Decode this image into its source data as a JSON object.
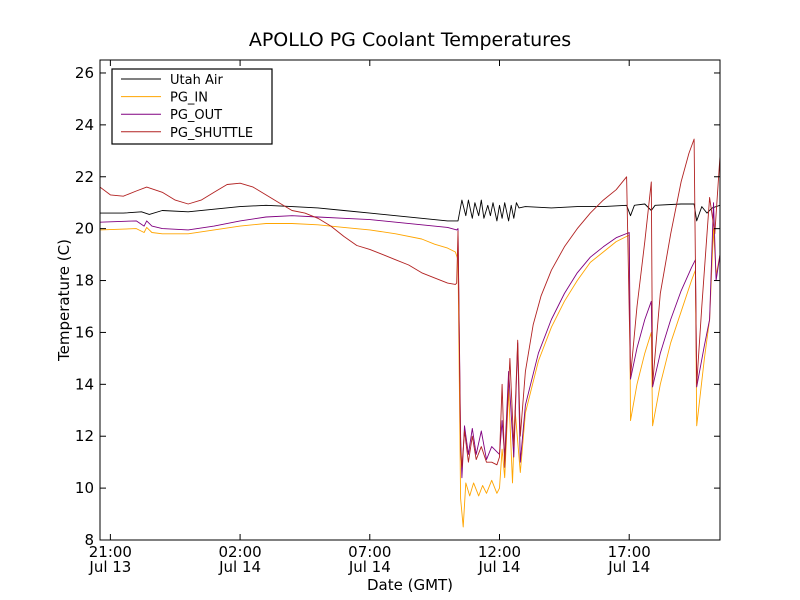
{
  "chart_data": {
    "type": "line",
    "title": "APOLLO PG Coolant Temperatures",
    "xlabel": "Date (GMT)",
    "ylabel": "Temperature (C)",
    "x_unit": "hours since Jul 13 20:00 GMT",
    "xlim": [
      0.6,
      24.5
    ],
    "ylim": [
      8,
      26.5
    ],
    "y_ticks": [
      8,
      10,
      12,
      14,
      16,
      18,
      20,
      22,
      24,
      26
    ],
    "x_ticks": [
      {
        "x": 1,
        "time": "21:00",
        "date": "Jul 13"
      },
      {
        "x": 6,
        "time": "02:00",
        "date": "Jul 14"
      },
      {
        "x": 11,
        "time": "07:00",
        "date": "Jul 14"
      },
      {
        "x": 16,
        "time": "12:00",
        "date": "Jul 14"
      },
      {
        "x": 21,
        "time": "17:00",
        "date": "Jul 14"
      }
    ],
    "legend_position": "top-left",
    "series": [
      {
        "name": "Utah Air",
        "color": "#000000",
        "points": [
          [
            0.6,
            20.6
          ],
          [
            1.5,
            20.6
          ],
          [
            2.2,
            20.65
          ],
          [
            2.5,
            20.55
          ],
          [
            3.0,
            20.7
          ],
          [
            4.0,
            20.65
          ],
          [
            5.0,
            20.75
          ],
          [
            6.0,
            20.85
          ],
          [
            7.0,
            20.9
          ],
          [
            8.0,
            20.85
          ],
          [
            9.0,
            20.8
          ],
          [
            10.0,
            20.7
          ],
          [
            11.0,
            20.6
          ],
          [
            12.0,
            20.5
          ],
          [
            13.0,
            20.4
          ],
          [
            14.0,
            20.3
          ],
          [
            14.4,
            20.3
          ],
          [
            14.55,
            21.1
          ],
          [
            14.7,
            20.5
          ],
          [
            14.8,
            21.1
          ],
          [
            14.95,
            20.4
          ],
          [
            15.05,
            21.0
          ],
          [
            15.2,
            20.5
          ],
          [
            15.3,
            21.1
          ],
          [
            15.4,
            20.4
          ],
          [
            15.55,
            20.9
          ],
          [
            15.65,
            20.5
          ],
          [
            15.75,
            21.0
          ],
          [
            15.9,
            20.3
          ],
          [
            16.0,
            20.9
          ],
          [
            16.1,
            20.4
          ],
          [
            16.2,
            21.0
          ],
          [
            16.35,
            20.3
          ],
          [
            16.45,
            20.9
          ],
          [
            16.55,
            20.4
          ],
          [
            16.65,
            21.0
          ],
          [
            16.75,
            20.8
          ],
          [
            17.0,
            20.85
          ],
          [
            18.0,
            20.8
          ],
          [
            19.0,
            20.85
          ],
          [
            20.0,
            20.85
          ],
          [
            20.9,
            20.9
          ],
          [
            21.05,
            20.5
          ],
          [
            21.2,
            20.9
          ],
          [
            21.6,
            20.95
          ],
          [
            21.85,
            20.7
          ],
          [
            22.0,
            20.9
          ],
          [
            23.0,
            20.95
          ],
          [
            23.5,
            20.95
          ],
          [
            23.6,
            20.3
          ],
          [
            23.8,
            20.85
          ],
          [
            24.0,
            20.6
          ],
          [
            24.2,
            20.8
          ],
          [
            24.5,
            20.9
          ]
        ]
      },
      {
        "name": "PG_IN",
        "color": "#ffa500",
        "points": [
          [
            0.6,
            19.95
          ],
          [
            2.0,
            20.0
          ],
          [
            2.3,
            19.85
          ],
          [
            2.4,
            20.05
          ],
          [
            2.6,
            19.85
          ],
          [
            3.0,
            19.8
          ],
          [
            4.0,
            19.8
          ],
          [
            5.0,
            19.95
          ],
          [
            6.0,
            20.1
          ],
          [
            7.0,
            20.2
          ],
          [
            8.0,
            20.2
          ],
          [
            9.0,
            20.15
          ],
          [
            10.0,
            20.05
          ],
          [
            11.0,
            19.95
          ],
          [
            12.0,
            19.8
          ],
          [
            13.0,
            19.6
          ],
          [
            13.5,
            19.4
          ],
          [
            14.0,
            19.25
          ],
          [
            14.3,
            19.1
          ],
          [
            14.4,
            18.8
          ],
          [
            14.5,
            9.6
          ],
          [
            14.6,
            8.5
          ],
          [
            14.7,
            10.2
          ],
          [
            14.85,
            9.7
          ],
          [
            15.0,
            10.2
          ],
          [
            15.2,
            9.7
          ],
          [
            15.35,
            10.1
          ],
          [
            15.5,
            9.8
          ],
          [
            15.7,
            10.3
          ],
          [
            15.9,
            9.8
          ],
          [
            16.0,
            10.0
          ],
          [
            16.1,
            11.5
          ],
          [
            16.2,
            10.4
          ],
          [
            16.35,
            13.8
          ],
          [
            16.5,
            10.2
          ],
          [
            16.6,
            13.0
          ],
          [
            16.8,
            10.6
          ],
          [
            17.0,
            12.9
          ],
          [
            17.5,
            14.9
          ],
          [
            18.0,
            16.2
          ],
          [
            18.5,
            17.2
          ],
          [
            19.0,
            18.0
          ],
          [
            19.5,
            18.7
          ],
          [
            20.0,
            19.1
          ],
          [
            20.5,
            19.5
          ],
          [
            21.0,
            19.75
          ],
          [
            21.05,
            12.6
          ],
          [
            21.3,
            14.0
          ],
          [
            21.6,
            15.2
          ],
          [
            21.85,
            16.0
          ],
          [
            21.9,
            12.4
          ],
          [
            22.2,
            14.0
          ],
          [
            22.6,
            15.6
          ],
          [
            23.0,
            16.8
          ],
          [
            23.4,
            18.0
          ],
          [
            23.55,
            18.4
          ],
          [
            23.6,
            12.4
          ],
          [
            23.9,
            15.0
          ],
          [
            24.1,
            16.5
          ],
          [
            24.25,
            20.0
          ],
          [
            24.35,
            18.2
          ],
          [
            24.5,
            19.0
          ]
        ]
      },
      {
        "name": "PG_OUT",
        "color": "#800080",
        "points": [
          [
            0.6,
            20.25
          ],
          [
            2.0,
            20.3
          ],
          [
            2.3,
            20.1
          ],
          [
            2.4,
            20.3
          ],
          [
            2.6,
            20.1
          ],
          [
            3.0,
            20.0
          ],
          [
            4.0,
            19.95
          ],
          [
            5.0,
            20.1
          ],
          [
            6.0,
            20.3
          ],
          [
            7.0,
            20.45
          ],
          [
            8.0,
            20.5
          ],
          [
            9.0,
            20.45
          ],
          [
            10.0,
            20.4
          ],
          [
            11.0,
            20.35
          ],
          [
            12.0,
            20.25
          ],
          [
            13.0,
            20.15
          ],
          [
            14.0,
            20.05
          ],
          [
            14.35,
            19.95
          ],
          [
            14.4,
            20.0
          ],
          [
            14.5,
            12.0
          ],
          [
            14.55,
            10.4
          ],
          [
            14.65,
            12.4
          ],
          [
            14.8,
            11.3
          ],
          [
            14.95,
            12.3
          ],
          [
            15.1,
            11.3
          ],
          [
            15.3,
            12.2
          ],
          [
            15.5,
            11.1
          ],
          [
            15.7,
            11.6
          ],
          [
            15.9,
            11.4
          ],
          [
            16.0,
            11.3
          ],
          [
            16.1,
            12.6
          ],
          [
            16.2,
            11.2
          ],
          [
            16.35,
            14.5
          ],
          [
            16.55,
            11.2
          ],
          [
            16.7,
            15.6
          ],
          [
            16.8,
            11.0
          ],
          [
            17.0,
            13.2
          ],
          [
            17.5,
            15.2
          ],
          [
            18.0,
            16.5
          ],
          [
            18.5,
            17.5
          ],
          [
            19.0,
            18.3
          ],
          [
            19.5,
            18.9
          ],
          [
            20.0,
            19.3
          ],
          [
            20.5,
            19.65
          ],
          [
            21.0,
            19.85
          ],
          [
            21.05,
            14.2
          ],
          [
            21.3,
            15.4
          ],
          [
            21.6,
            16.5
          ],
          [
            21.85,
            17.2
          ],
          [
            21.9,
            13.9
          ],
          [
            22.2,
            15.2
          ],
          [
            22.6,
            16.5
          ],
          [
            23.0,
            17.6
          ],
          [
            23.4,
            18.5
          ],
          [
            23.55,
            18.8
          ],
          [
            23.6,
            13.9
          ],
          [
            23.9,
            15.5
          ],
          [
            24.1,
            16.5
          ],
          [
            24.25,
            21.0
          ],
          [
            24.35,
            18.0
          ],
          [
            24.5,
            19.0
          ]
        ]
      },
      {
        "name": "PG_SHUTTLE",
        "color": "#b22222",
        "points": [
          [
            0.6,
            21.6
          ],
          [
            1.0,
            21.3
          ],
          [
            1.5,
            21.25
          ],
          [
            2.0,
            21.45
          ],
          [
            2.4,
            21.6
          ],
          [
            3.0,
            21.4
          ],
          [
            3.5,
            21.1
          ],
          [
            4.0,
            20.95
          ],
          [
            4.5,
            21.1
          ],
          [
            5.0,
            21.4
          ],
          [
            5.5,
            21.7
          ],
          [
            6.0,
            21.75
          ],
          [
            6.5,
            21.6
          ],
          [
            7.0,
            21.3
          ],
          [
            7.5,
            21.0
          ],
          [
            8.0,
            20.7
          ],
          [
            8.5,
            20.6
          ],
          [
            9.0,
            20.4
          ],
          [
            9.5,
            20.1
          ],
          [
            10.0,
            19.7
          ],
          [
            10.5,
            19.35
          ],
          [
            11.0,
            19.2
          ],
          [
            11.5,
            19.0
          ],
          [
            12.0,
            18.8
          ],
          [
            12.5,
            18.6
          ],
          [
            13.0,
            18.3
          ],
          [
            13.5,
            18.1
          ],
          [
            14.0,
            17.9
          ],
          [
            14.3,
            17.85
          ],
          [
            14.35,
            17.9
          ],
          [
            14.4,
            19.9
          ],
          [
            14.5,
            11.5
          ],
          [
            14.55,
            10.8
          ],
          [
            14.65,
            12.2
          ],
          [
            14.8,
            11.0
          ],
          [
            14.95,
            12.0
          ],
          [
            15.1,
            11.1
          ],
          [
            15.3,
            11.6
          ],
          [
            15.5,
            11.0
          ],
          [
            15.7,
            11.0
          ],
          [
            15.9,
            10.9
          ],
          [
            16.0,
            11.2
          ],
          [
            16.1,
            14.0
          ],
          [
            16.2,
            10.8
          ],
          [
            16.4,
            15.0
          ],
          [
            16.55,
            11.6
          ],
          [
            16.7,
            15.7
          ],
          [
            16.8,
            12.0
          ],
          [
            17.0,
            14.5
          ],
          [
            17.3,
            16.3
          ],
          [
            17.6,
            17.4
          ],
          [
            18.0,
            18.4
          ],
          [
            18.5,
            19.3
          ],
          [
            19.0,
            20.0
          ],
          [
            19.5,
            20.6
          ],
          [
            20.0,
            21.1
          ],
          [
            20.5,
            21.5
          ],
          [
            20.9,
            22.0
          ],
          [
            21.05,
            14.3
          ],
          [
            21.3,
            17.0
          ],
          [
            21.6,
            19.5
          ],
          [
            21.85,
            21.8
          ],
          [
            21.9,
            14.0
          ],
          [
            22.2,
            17.5
          ],
          [
            22.6,
            19.8
          ],
          [
            23.0,
            21.8
          ],
          [
            23.3,
            22.9
          ],
          [
            23.5,
            23.45
          ],
          [
            23.6,
            14.0
          ],
          [
            23.8,
            17.0
          ],
          [
            24.0,
            19.8
          ],
          [
            24.1,
            21.2
          ],
          [
            24.3,
            19.8
          ],
          [
            24.5,
            22.8
          ]
        ]
      }
    ]
  }
}
